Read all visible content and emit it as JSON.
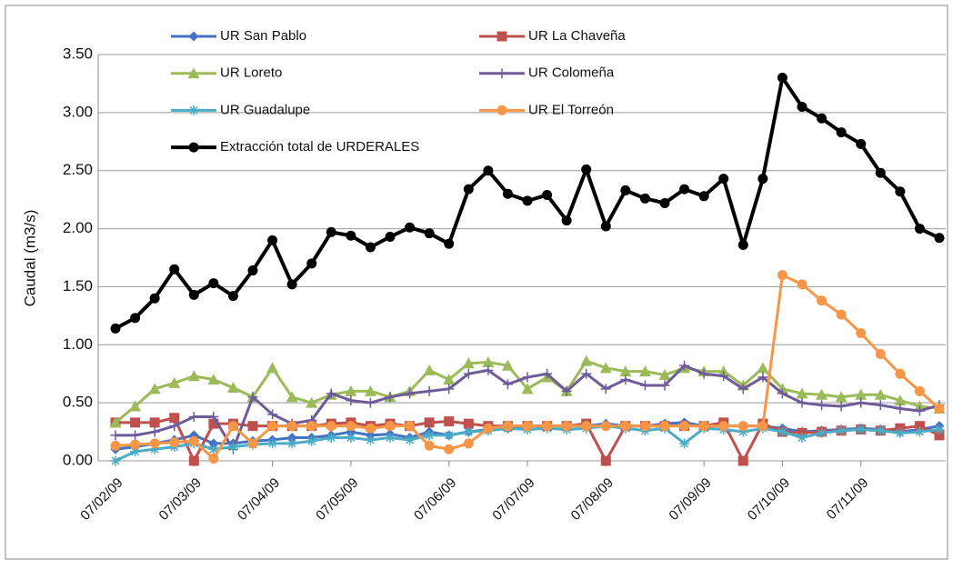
{
  "chart_data": {
    "type": "line",
    "y_label": "Caudal (m3/s)",
    "categories": [
      "07/02/09",
      null,
      null,
      null,
      "07/03/09",
      null,
      null,
      null,
      "07/04/09",
      null,
      null,
      null,
      "07/05/09",
      null,
      null,
      null,
      null,
      "07/06/09",
      null,
      null,
      null,
      "07/07/09",
      null,
      null,
      null,
      "07/08/09",
      null,
      null,
      null,
      null,
      "07/09/09",
      null,
      null,
      null,
      "07/10/09",
      null,
      null,
      null,
      "07/11/09",
      null,
      null,
      null,
      null
    ],
    "ylim": [
      0,
      3.5
    ],
    "yticks": [
      {
        "value": 0,
        "label": "0.00"
      },
      {
        "value": 0.5,
        "label": "0.50"
      },
      {
        "value": 1,
        "label": "1.00"
      },
      {
        "value": 1.5,
        "label": "1.50"
      },
      {
        "value": 2,
        "label": "2.00"
      },
      {
        "value": 2.5,
        "label": "2.50"
      },
      {
        "value": 3,
        "label": "3.00"
      },
      {
        "value": 3.5,
        "label": "3.50"
      }
    ],
    "grid": true,
    "series": [
      {
        "name": "UR San Pablo",
        "color": "#4472c4",
        "marker": "diamond",
        "values": [
          0.1,
          0.12,
          0.15,
          0.18,
          0.22,
          0.15,
          0.15,
          0.17,
          0.18,
          0.2,
          0.2,
          0.22,
          0.25,
          0.22,
          0.23,
          0.2,
          0.25,
          0.22,
          0.25,
          0.27,
          0.28,
          0.3,
          0.3,
          0.3,
          0.3,
          0.32,
          0.3,
          0.3,
          0.32,
          0.33,
          0.3,
          0.3,
          0.3,
          0.3,
          0.28,
          0.25,
          0.26,
          0.27,
          0.28,
          0.27,
          0.25,
          0.27,
          0.3
        ]
      },
      {
        "name": "UR La Chaveña",
        "color": "#c0504d",
        "marker": "square",
        "values": [
          0.33,
          0.33,
          0.33,
          0.37,
          0.0,
          0.32,
          0.32,
          0.3,
          0.3,
          0.3,
          0.3,
          0.32,
          0.33,
          0.3,
          0.32,
          0.3,
          0.33,
          0.34,
          0.32,
          0.3,
          0.3,
          0.3,
          0.3,
          0.3,
          0.32,
          0.0,
          0.3,
          0.3,
          0.3,
          0.3,
          0.3,
          0.33,
          0.0,
          0.32,
          0.25,
          0.24,
          0.25,
          0.26,
          0.27,
          0.26,
          0.28,
          0.3,
          0.22
        ]
      },
      {
        "name": "UR Loreto",
        "color": "#9bbb59",
        "marker": "triangle",
        "values": [
          0.33,
          0.47,
          0.62,
          0.67,
          0.73,
          0.7,
          0.63,
          0.55,
          0.8,
          0.55,
          0.5,
          0.57,
          0.6,
          0.6,
          0.55,
          0.6,
          0.78,
          0.7,
          0.84,
          0.85,
          0.82,
          0.62,
          0.72,
          0.6,
          0.86,
          0.8,
          0.77,
          0.77,
          0.74,
          0.8,
          0.77,
          0.77,
          0.65,
          0.8,
          0.62,
          0.58,
          0.57,
          0.55,
          0.57,
          0.57,
          0.52,
          0.47,
          0.45
        ]
      },
      {
        "name": "UR Colomeña",
        "color": "#6f5a9a",
        "marker": "plus",
        "values": [
          0.22,
          0.22,
          0.25,
          0.3,
          0.38,
          0.38,
          0.1,
          0.55,
          0.4,
          0.32,
          0.35,
          0.58,
          0.52,
          0.5,
          0.55,
          0.58,
          0.6,
          0.62,
          0.75,
          0.78,
          0.66,
          0.72,
          0.75,
          0.6,
          0.75,
          0.62,
          0.7,
          0.65,
          0.65,
          0.82,
          0.75,
          0.73,
          0.62,
          0.72,
          0.58,
          0.5,
          0.48,
          0.47,
          0.5,
          0.48,
          0.45,
          0.43,
          0.48
        ]
      },
      {
        "name": "UR Guadalupe",
        "color": "#4bacc6",
        "marker": "star",
        "values": [
          0.0,
          0.08,
          0.1,
          0.12,
          0.15,
          0.1,
          0.12,
          0.14,
          0.15,
          0.15,
          0.17,
          0.2,
          0.2,
          0.18,
          0.2,
          0.18,
          0.22,
          0.22,
          0.25,
          0.26,
          0.28,
          0.27,
          0.28,
          0.27,
          0.28,
          0.3,
          0.28,
          0.26,
          0.28,
          0.15,
          0.28,
          0.27,
          0.25,
          0.28,
          0.25,
          0.2,
          0.24,
          0.26,
          0.27,
          0.26,
          0.24,
          0.25,
          0.27
        ]
      },
      {
        "name": "UR El Torreón",
        "color": "#f79646",
        "marker": "circle",
        "values": [
          0.13,
          0.14,
          0.15,
          0.16,
          0.17,
          0.02,
          0.3,
          0.15,
          0.3,
          0.3,
          0.3,
          0.3,
          0.3,
          0.28,
          0.3,
          0.3,
          0.13,
          0.1,
          0.15,
          0.28,
          0.3,
          0.3,
          0.3,
          0.3,
          0.3,
          0.3,
          0.3,
          0.3,
          0.3,
          0.3,
          0.3,
          0.3,
          0.3,
          0.3,
          1.6,
          1.52,
          1.38,
          1.26,
          1.1,
          0.92,
          0.75,
          0.6,
          0.45
        ]
      },
      {
        "name": "Extracción total de URDERALES",
        "color": "#000000",
        "marker": "circle",
        "values": [
          1.14,
          1.23,
          1.4,
          1.65,
          1.43,
          1.53,
          1.42,
          1.64,
          1.9,
          1.52,
          1.7,
          1.97,
          1.94,
          1.84,
          1.93,
          2.01,
          1.96,
          1.87,
          2.34,
          2.5,
          2.3,
          2.24,
          2.29,
          2.07,
          2.51,
          2.02,
          2.33,
          2.26,
          2.22,
          2.34,
          2.28,
          2.43,
          1.86,
          2.43,
          3.3,
          3.05,
          2.95,
          2.83,
          2.73,
          2.48,
          2.32,
          2.0,
          1.92
        ]
      }
    ]
  }
}
